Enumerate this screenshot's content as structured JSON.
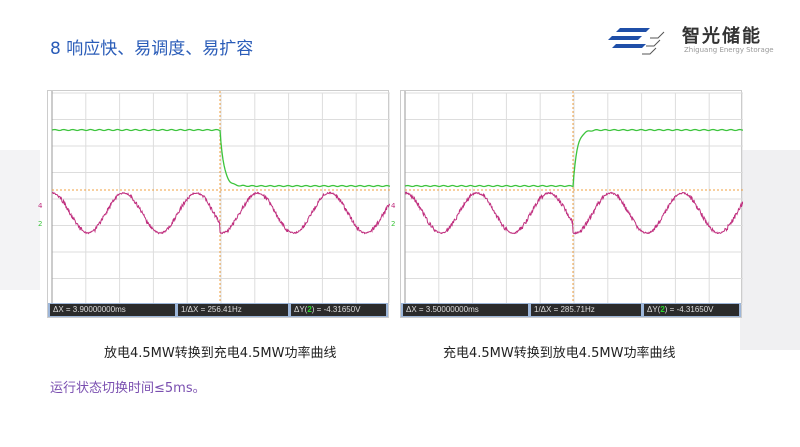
{
  "title": "8 响应快、易调度、易扩容",
  "logo": {
    "name_cn": "智光储能",
    "name_en": "Zhiguang Energy Storage"
  },
  "scopes": [
    {
      "dx": "ΔX = 3.90000000ms",
      "inv_dx": "1/ΔX = 256.41Hz",
      "dy_prefix": "ΔY(",
      "dy_ch": "2",
      "dy_suffix": ") = -4.31650V",
      "transition": "fall",
      "caption": "放电4.5MW转换到充电4.5MW功率曲线",
      "ch1_marker": "4",
      "ch2_marker": "2"
    },
    {
      "dx": "ΔX = 3.50000000ms",
      "inv_dx": "1/ΔX = 285.71Hz",
      "dy_prefix": "ΔY(",
      "dy_ch": "2",
      "dy_suffix": ") = -4.31650V",
      "transition": "rise",
      "caption": "充电4.5MW转换到放电4.5MW功率曲线",
      "ch1_marker": "4",
      "ch2_marker": "2"
    }
  ],
  "note": "运行状态切换时间≤5ms。",
  "colors": {
    "title": "#2a5cb8",
    "power_trace": "#3cc43c",
    "voltage_trace": "#c0307f",
    "cursor": "#f0a040",
    "note": "#7a4fb0"
  }
}
